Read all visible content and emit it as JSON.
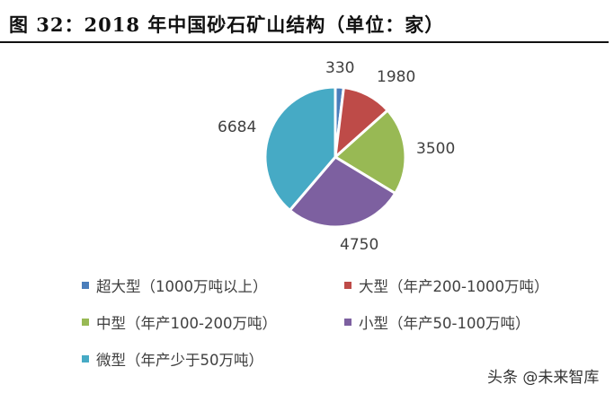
{
  "title": "图 32：2018 年中国砂石矿山结构（单位：家）",
  "watermark": "头条 @未来智库",
  "chart_data": {
    "type": "pie",
    "title": "图 32：2018 年中国砂石矿山结构（单位：家）",
    "unit": "家",
    "categories": [
      "超大型（1000万吨以上）",
      "大型（年产200-1000万吨）",
      "中型（年产100-200万吨）",
      "小型（年产50-100万吨）",
      "微型（年产少于50万吨）"
    ],
    "values": [
      330,
      1980,
      3500,
      4750,
      6684
    ],
    "colors": [
      "#4a7ebb",
      "#be4b48",
      "#98b954",
      "#7d60a0",
      "#46aac5"
    ],
    "data_labels": [
      "330",
      "1980",
      "3500",
      "4750",
      "6684"
    ],
    "start_angle_deg": 0,
    "direction": "clockwise",
    "legend_position": "bottom"
  },
  "legend": [
    {
      "label": "超大型（1000万吨以上）",
      "color": "#4a7ebb"
    },
    {
      "label": "大型（年产200-1000万吨）",
      "color": "#be4b48"
    },
    {
      "label": "中型（年产100-200万吨）",
      "color": "#98b954"
    },
    {
      "label": "小型（年产50-100万吨）",
      "color": "#7d60a0"
    },
    {
      "label": "微型（年产少于50万吨）",
      "color": "#46aac5"
    }
  ]
}
